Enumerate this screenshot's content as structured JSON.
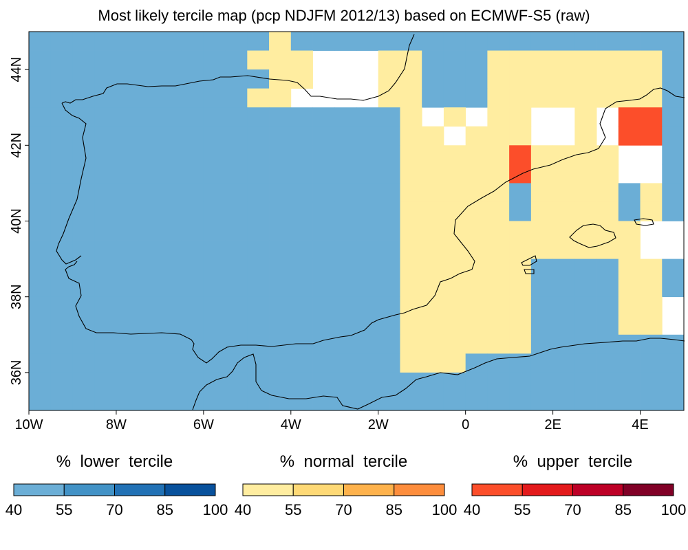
{
  "title": "Most likely tercile map (pcp NDJFM 2012/13) based on ECMWF-S5 (raw)",
  "map": {
    "lon_range": [
      -10,
      5
    ],
    "lat_range": [
      35,
      45
    ],
    "cell_size_deg": 0.5,
    "x_ticks": [
      {
        "value": -10,
        "label": "10W"
      },
      {
        "value": -8,
        "label": "8W"
      },
      {
        "value": -6,
        "label": "6W"
      },
      {
        "value": -4,
        "label": "4W"
      },
      {
        "value": -2,
        "label": "2W"
      },
      {
        "value": 0,
        "label": "0"
      },
      {
        "value": 2,
        "label": "2E"
      },
      {
        "value": 4,
        "label": "4E"
      }
    ],
    "y_ticks": [
      {
        "value": 36,
        "label": "36N"
      },
      {
        "value": 38,
        "label": "38N"
      },
      {
        "value": 40,
        "label": "40N"
      },
      {
        "value": 42,
        "label": "42N"
      },
      {
        "value": 44,
        "label": "44N"
      }
    ],
    "code_key": {
      "0": "no signal",
      "1": "lower tercile 40-55%",
      "2": "lower tercile 55-70%",
      "3": "normal tercile 40-55%",
      "4": "normal tercile 55-70%",
      "5": "upper tercile 40-55%"
    },
    "code_colors": {
      "0": "#ffffff",
      "1": "#6baed6",
      "2": "#4292c6",
      "3": "#ffeda0",
      "4": "#fed976",
      "5": "#fc4e2a"
    },
    "grid_rows_north_to_south": [
      "111111111113111111111111111111",
      "111111111133300033111333333331",
      "111111111113300033111333333331",
      "111111111133000033111333333331",
      "111111111111111113030330030551",
      "111111111111111113303330030551",
      "111111111111111113333353333001",
      "111111111111111113333353333001",
      "111111111111111113333313333131",
      "111111111111111113333313333131",
      "111111111111111113333333333300",
      "111111111111111113333333333300",
      "111111111111111113333331111331",
      "111111111111111113333331111331",
      "111111111111111113333331111330",
      "111111111111111113333331111330",
      "111111111111111113333331111111",
      "111111111111111113331111111111",
      "111111111111111111111111111111",
      "111111111111111111111111111111"
    ],
    "coastline_note": "Iberian Peninsula, southern France, Balearic Islands, Corsica-Sardinia and North Africa coasts"
  },
  "legends": [
    {
      "title": "%  lower  tercile",
      "colors": [
        "#6baed6",
        "#4292c6",
        "#2171b5",
        "#08519c"
      ],
      "ticks": [
        "40",
        "55",
        "70",
        "85",
        "100"
      ]
    },
    {
      "title": "%  normal  tercile",
      "colors": [
        "#ffeda0",
        "#fed976",
        "#feb24c",
        "#fd8d3c"
      ],
      "ticks": [
        "40",
        "55",
        "70",
        "85",
        "100"
      ]
    },
    {
      "title": "%  upper  tercile",
      "colors": [
        "#fc4e2a",
        "#e31a1c",
        "#bd0026",
        "#800026"
      ],
      "ticks": [
        "40",
        "55",
        "70",
        "85",
        "100"
      ]
    }
  ]
}
